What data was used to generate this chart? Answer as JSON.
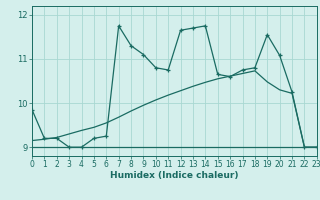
{
  "xlabel": "Humidex (Indice chaleur)",
  "bg_color": "#d4efec",
  "grid_color": "#a8d8d2",
  "line_color": "#1a6b62",
  "x_ticks": [
    0,
    1,
    2,
    3,
    4,
    5,
    6,
    7,
    8,
    9,
    10,
    11,
    12,
    13,
    14,
    15,
    16,
    17,
    18,
    19,
    20,
    21,
    22,
    23
  ],
  "xlim": [
    0,
    23
  ],
  "ylim": [
    8.8,
    12.2
  ],
  "yticks": [
    9,
    10,
    11,
    12
  ],
  "line1_x": [
    0,
    1,
    2,
    3,
    4,
    5,
    6,
    7,
    8,
    9,
    10,
    11,
    12,
    13,
    14,
    15,
    16,
    17,
    18,
    19,
    20,
    21,
    22,
    23
  ],
  "line1_y": [
    9.85,
    9.2,
    9.2,
    9.0,
    9.0,
    9.2,
    9.25,
    11.75,
    11.3,
    11.1,
    10.8,
    10.75,
    11.65,
    11.7,
    11.75,
    10.65,
    10.6,
    10.75,
    10.8,
    11.55,
    11.08,
    10.25,
    9.0,
    9.0
  ],
  "line2_y": [
    9.0,
    9.0,
    9.0,
    9.0,
    9.0,
    9.0,
    9.0,
    9.0,
    9.0,
    9.0,
    9.0,
    9.0,
    9.0,
    9.0,
    9.0,
    9.0,
    9.0,
    9.0,
    9.0,
    9.0,
    9.0,
    9.0,
    9.0,
    9.0
  ],
  "line3_y": [
    9.15,
    9.18,
    9.22,
    9.3,
    9.38,
    9.45,
    9.55,
    9.68,
    9.82,
    9.95,
    10.07,
    10.18,
    10.28,
    10.38,
    10.47,
    10.55,
    10.61,
    10.67,
    10.73,
    10.48,
    10.3,
    10.22,
    9.0,
    9.0
  ]
}
